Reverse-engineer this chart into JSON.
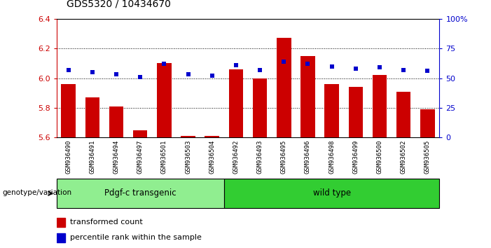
{
  "title": "GDS5320 / 10434670",
  "samples": [
    "GSM936490",
    "GSM936491",
    "GSM936494",
    "GSM936497",
    "GSM936501",
    "GSM936503",
    "GSM936504",
    "GSM936492",
    "GSM936493",
    "GSM936495",
    "GSM936496",
    "GSM936498",
    "GSM936499",
    "GSM936500",
    "GSM936502",
    "GSM936505"
  ],
  "transformed_count": [
    5.96,
    5.87,
    5.81,
    5.65,
    6.1,
    5.61,
    5.61,
    6.06,
    6.0,
    6.27,
    6.15,
    5.96,
    5.94,
    6.02,
    5.91,
    5.79
  ],
  "percentile_rank": [
    57,
    55,
    53,
    51,
    62,
    53,
    52,
    61,
    57,
    64,
    62,
    60,
    58,
    59,
    57,
    56
  ],
  "group_labels": [
    "Pdgf-c transgenic",
    "wild type"
  ],
  "group_ranges": [
    [
      0,
      7
    ],
    [
      7,
      16
    ]
  ],
  "ylim_left": [
    5.6,
    6.4
  ],
  "ylim_right": [
    0,
    100
  ],
  "yticks_left": [
    5.6,
    5.8,
    6.0,
    6.2,
    6.4
  ],
  "yticks_right": [
    0,
    25,
    50,
    75,
    100
  ],
  "ytick_labels_right": [
    "0",
    "25",
    "50",
    "75",
    "100%"
  ],
  "grid_yticks": [
    5.8,
    6.0,
    6.2
  ],
  "bar_color": "#CC0000",
  "dot_color": "#0000CC",
  "bg_color": "#FFFFFF",
  "ylabel_left_color": "#CC0000",
  "ylabel_right_color": "#0000CC",
  "legend_bar_label": "transformed count",
  "legend_dot_label": "percentile rank within the sample",
  "genotype_label": "genotype/variation",
  "group_color_transgenic": "#90EE90",
  "group_color_wild": "#32CD32",
  "tick_bg_color": "#C8C8C8"
}
